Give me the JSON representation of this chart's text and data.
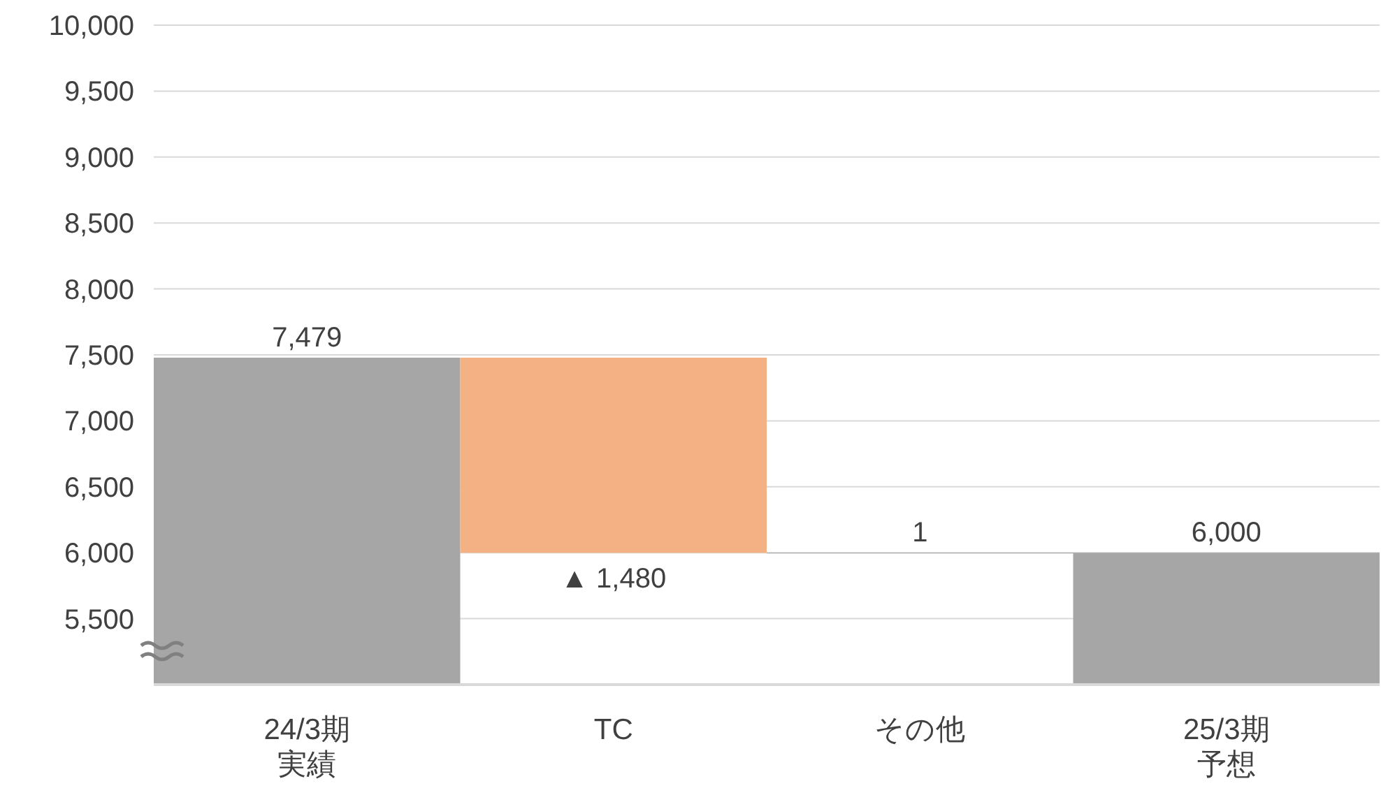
{
  "chart_data": {
    "type": "bar",
    "categories": [
      "24/3期実績",
      "TC",
      "その他",
      "25/3期予想"
    ],
    "values": [
      2479,
      -1480,
      1,
      1000
    ],
    "base": [
      5000,
      7479,
      5999,
      5000
    ],
    "colors": [
      "#a6a6a6",
      "#f4b183",
      "#a6a6a6",
      "#a6a6a6"
    ],
    "value_labels": [
      "7,479",
      "▲ 1,480",
      "1",
      "6,000"
    ],
    "ylim": [
      5000,
      10000
    ],
    "yticks": [
      {
        "value": 5500,
        "label": "5,500"
      },
      {
        "value": 6000,
        "label": "6,000"
      },
      {
        "value": 6500,
        "label": "6,500"
      },
      {
        "value": 7000,
        "label": "7,000"
      },
      {
        "value": 7500,
        "label": "7,500"
      },
      {
        "value": 8000,
        "label": "8,000"
      },
      {
        "value": 8500,
        "label": "8,500"
      },
      {
        "value": 9000,
        "label": "9,000"
      },
      {
        "value": 9500,
        "label": "9,500"
      },
      {
        "value": 10000,
        "label": "10,000"
      }
    ],
    "grid": "y"
  }
}
